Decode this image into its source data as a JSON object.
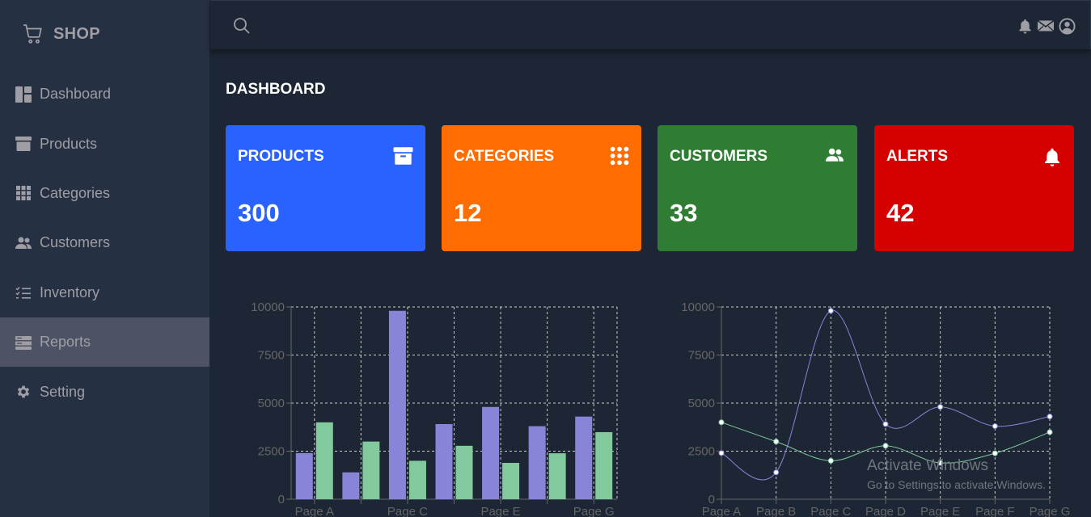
{
  "brand": {
    "name": "SHOP",
    "icon": "cart-icon"
  },
  "sidebar": {
    "items": [
      {
        "label": "Dashboard",
        "icon": "dashboard-icon"
      },
      {
        "label": "Products",
        "icon": "archive-icon"
      },
      {
        "label": "Categories",
        "icon": "grid-icon"
      },
      {
        "label": "Customers",
        "icon": "people-icon"
      },
      {
        "label": "Inventory",
        "icon": "list-check-icon"
      },
      {
        "label": "Reports",
        "icon": "report-icon",
        "active": true
      },
      {
        "label": "Setting",
        "icon": "gear-icon"
      }
    ]
  },
  "header": {
    "icons": [
      "search-icon",
      "bell-icon",
      "envelope-icon",
      "user-circle-icon"
    ]
  },
  "main": {
    "title": "DASHBOARD",
    "cards": [
      {
        "label": "PRODUCTS",
        "value": "300",
        "color": "#2962ff",
        "icon": "archive-icon"
      },
      {
        "label": "CATEGORIES",
        "value": "12",
        "color": "#ff6d00",
        "icon": "grid-icon"
      },
      {
        "label": "CUSTOMERS",
        "value": "33",
        "color": "#2e7d32",
        "icon": "people-icon"
      },
      {
        "label": "ALERTS",
        "value": "42",
        "color": "#d50000",
        "icon": "bell-icon"
      }
    ]
  },
  "chart_data": [
    {
      "type": "bar",
      "categories": [
        "Page A",
        "Page B",
        "Page C",
        "Page D",
        "Page E",
        "Page F",
        "Page G"
      ],
      "tick_labels_shown": [
        "Page A",
        "Page C",
        "Page E",
        "Page G"
      ],
      "series": [
        {
          "values": [
            2400,
            1398,
            9800,
            3908,
            4800,
            3800,
            4300
          ],
          "color": "#8884d8"
        },
        {
          "values": [
            4000,
            3000,
            2000,
            2780,
            1890,
            2390,
            3490
          ],
          "color": "#82ca9d"
        }
      ],
      "yticks": [
        "0",
        "2500",
        "5000",
        "7500",
        "10000"
      ],
      "ylim": [
        0,
        10000
      ],
      "grid": true
    },
    {
      "type": "line",
      "categories": [
        "Page A",
        "Page B",
        "Page C",
        "Page D",
        "Page E",
        "Page F",
        "Page G"
      ],
      "series": [
        {
          "values": [
            2400,
            1398,
            9800,
            3908,
            4800,
            3800,
            4300
          ],
          "color": "#8884d8"
        },
        {
          "values": [
            4000,
            3000,
            2000,
            2780,
            1890,
            2390,
            3490
          ],
          "color": "#82ca9d"
        }
      ],
      "yticks": [
        "0",
        "2500",
        "5000",
        "7500",
        "10000"
      ],
      "ylim": [
        0,
        10000
      ],
      "grid": true
    }
  ],
  "watermark": {
    "title": "Activate Windows",
    "subtitle": "Go to Settings to activate Windows."
  }
}
